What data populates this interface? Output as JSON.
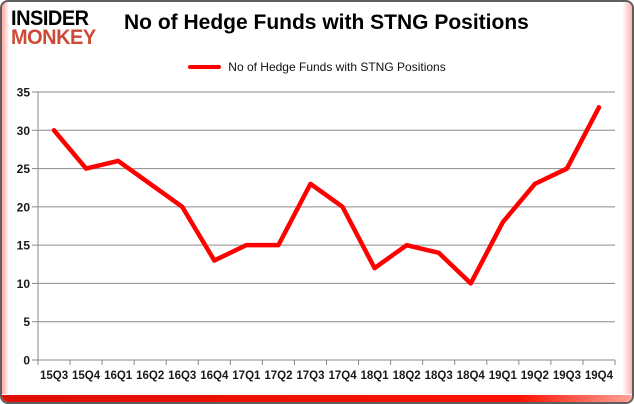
{
  "logo": {
    "line1": "INSIDER",
    "line2": "MONKEY",
    "line1_color": "#000000",
    "line2_color": "#cd4a36"
  },
  "header": {
    "title": "No of Hedge Funds with STNG Positions"
  },
  "legend": {
    "label": "No of Hedge Funds with STNG Positions",
    "marker_color": "#ff0000"
  },
  "chart_data": {
    "type": "line",
    "title": "No of Hedge Funds with STNG Positions",
    "categories": [
      "15Q3",
      "15Q4",
      "16Q1",
      "16Q2",
      "16Q3",
      "16Q4",
      "17Q1",
      "17Q2",
      "17Q3",
      "17Q4",
      "18Q1",
      "18Q2",
      "18Q3",
      "18Q4",
      "19Q1",
      "19Q2",
      "19Q3",
      "19Q4"
    ],
    "series": [
      {
        "name": "No of Hedge Funds with STNG Positions",
        "color": "#ff0000",
        "values": [
          30,
          25,
          26,
          23,
          20,
          13,
          15,
          15,
          23,
          20,
          12,
          15,
          14,
          10,
          18,
          23,
          25,
          33
        ]
      }
    ],
    "xlabel": "",
    "ylabel": "",
    "ylim": [
      0,
      35
    ],
    "ytick_step": 5,
    "grid": true,
    "legend_position": "top",
    "gridline_color": "#8a8a8a",
    "axis_color": "#8a8a8a",
    "tick_label_color": "#1a1a1a"
  },
  "frame": {
    "border_color": "#5f5f5f",
    "bottom_bar_color": "#f01103",
    "glow_color": "#ff5a4d"
  }
}
